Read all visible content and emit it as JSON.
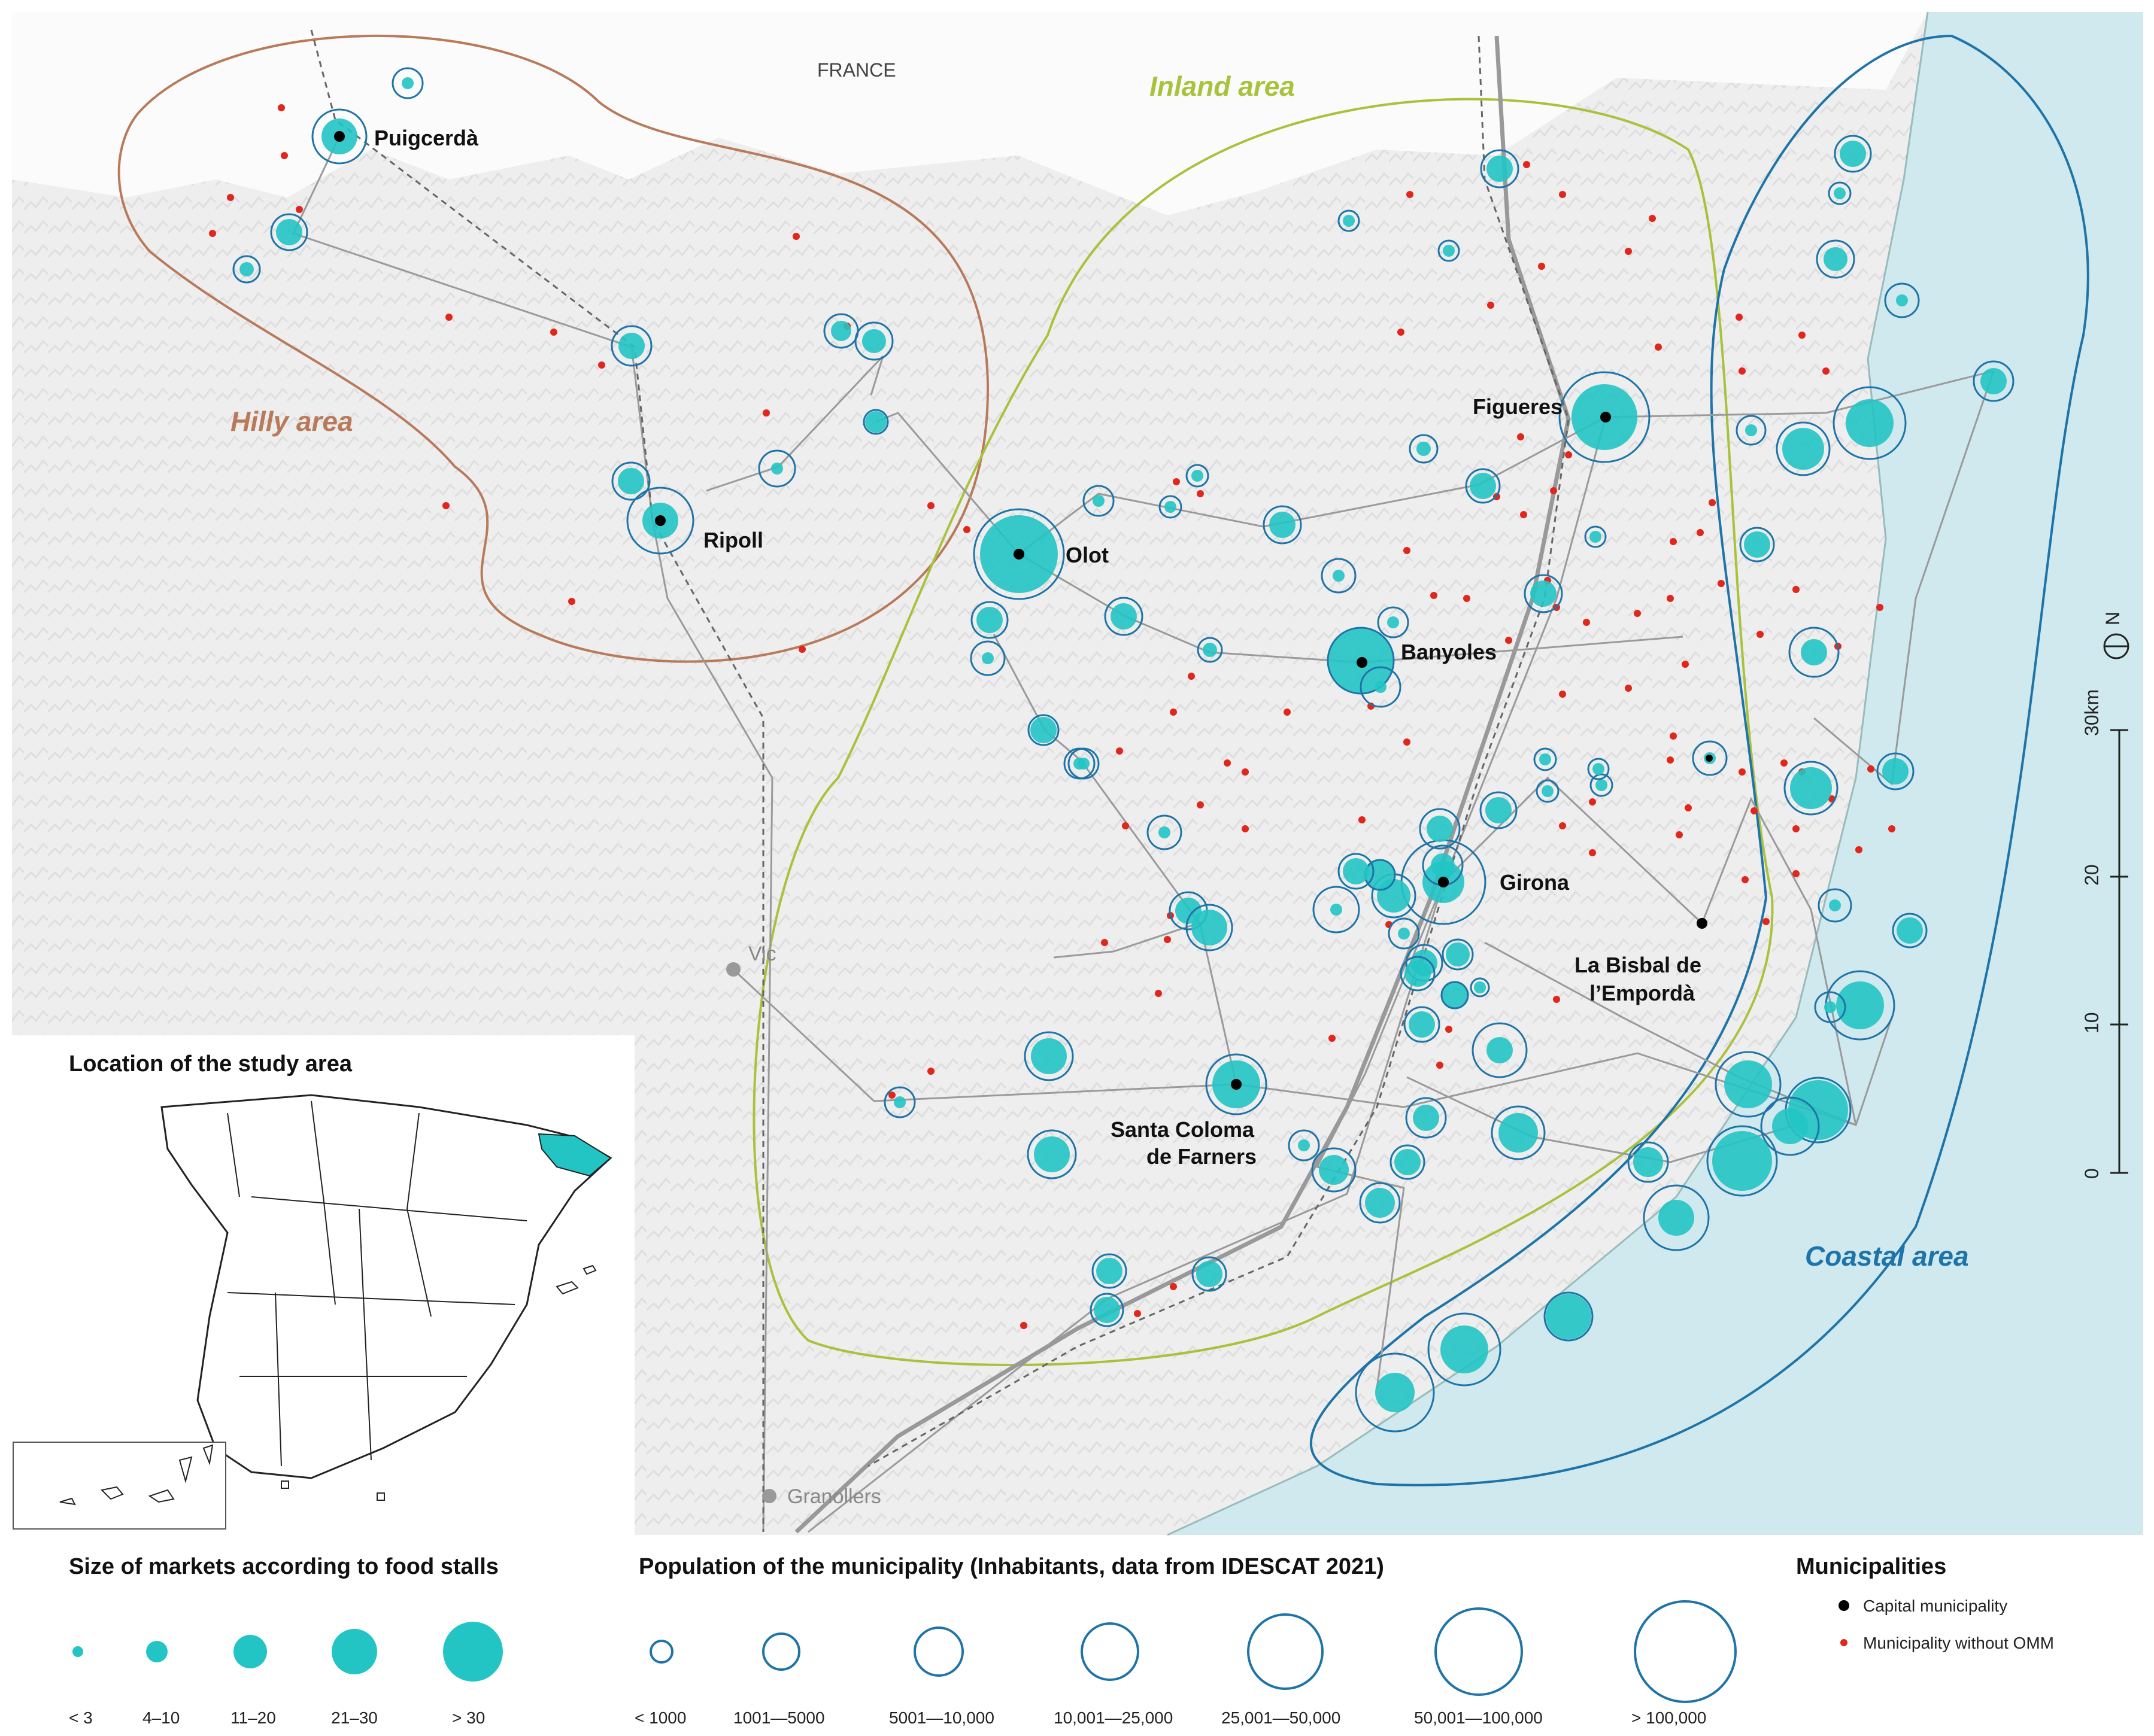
{
  "country_label": "FRANCE",
  "areas": {
    "hilly": {
      "label": "Hilly area",
      "color": "#b87a5a"
    },
    "inland": {
      "label": "Inland area",
      "color": "#a9c23b"
    },
    "coastal": {
      "label": "Coastal area",
      "color": "#1e74a8"
    }
  },
  "cities": {
    "puigcerda": "Puigcerdà",
    "ripoll": "Ripoll",
    "olot": "Olot",
    "figueres": "Figueres",
    "banyoles": "Banyoles",
    "girona": "Girona",
    "la_bisbal_1": "La Bisbal de",
    "la_bisbal_2": "l’Empordà",
    "santa_coloma_1": "Santa Coloma",
    "santa_coloma_2": "de Farners",
    "vic": "Vic",
    "granollers": "Granollers"
  },
  "scale": {
    "unit": "30km",
    "ticks": [
      "0",
      "10",
      "20"
    ]
  },
  "inset": {
    "title": "Location of the study area"
  },
  "legend": {
    "markets": {
      "title": "Size of markets according to food stalls",
      "items": [
        "< 3",
        "4–10",
        "11–20",
        "21–30",
        "> 30"
      ]
    },
    "population": {
      "title": "Population of the municipality (Inhabitants, data from IDESCAT 2021)",
      "items": [
        "< 1000",
        "1001—5000",
        "5001—10,000",
        "10,001—25,000",
        "25,001—50,000",
        "50,001—100,000",
        "> 100,000"
      ]
    },
    "municipalities": {
      "title": "Municipalities",
      "items": [
        "Capital municipality",
        "Municipality without OMM"
      ]
    }
  },
  "colors": {
    "market_fill": "#22c4c4",
    "population_ring": "#1e74a8",
    "sea": "#cfe9ef",
    "no_omm_dot": "#e2261c",
    "capital_dot": "#000000"
  }
}
